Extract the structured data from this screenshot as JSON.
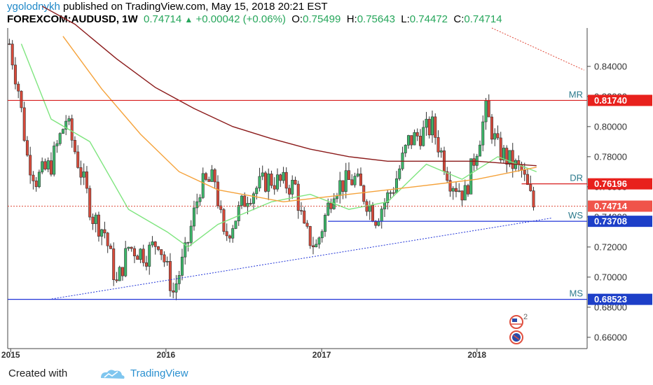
{
  "header": {
    "author": "ygolodnykh",
    "published": " published on TradingView.com, May 15, 2018 20:21 EST",
    "symbol": "FOREXCOM:AUDUSD, 1W",
    "last": "0.74714",
    "change": "+0.00042 (+0.06%)",
    "o_label": "O:",
    "o_value": "0.75499",
    "h_label": "H:",
    "h_value": "0.75643",
    "l_label": "L:",
    "l_value": "0.74472",
    "c_label": "C:",
    "c_value": "0.74714"
  },
  "footer": {
    "created_with": "Created with",
    "brand": "TradingView"
  },
  "events": {
    "count": "2"
  },
  "chart_data": {
    "type": "candlestick",
    "title": "FOREXCOM:AUDUSD, 1W",
    "y_ticks": [
      0.84,
      0.82,
      0.8,
      0.78,
      0.76,
      0.74,
      0.72,
      0.7,
      0.68,
      0.66
    ],
    "y_tick_labels": [
      "0.84000",
      "0.82000",
      "0.80000",
      "0.78000",
      "0.76000",
      "0.74000",
      "0.72000",
      "0.70000",
      "0.68000",
      "0.66000"
    ],
    "y_range": [
      0.6525,
      0.8655
    ],
    "x_ticks": [
      {
        "label": "2015",
        "date": "2015-01-01"
      },
      {
        "label": "2016",
        "date": "2016-01-01"
      },
      {
        "label": "2017",
        "date": "2017-01-01"
      },
      {
        "label": "2018",
        "date": "2018-01-01"
      }
    ],
    "x_range": [
      "2014-12-25",
      "2018-09-17"
    ],
    "ohlc_keyframes": [
      {
        "date": "2014-12-29",
        "close": 0.855
      },
      {
        "date": "2015-01-19",
        "close": 0.825
      },
      {
        "date": "2015-02-09",
        "close": 0.78
      },
      {
        "date": "2015-03-02",
        "close": 0.765
      },
      {
        "date": "2015-04-06",
        "close": 0.775
      },
      {
        "date": "2015-05-11",
        "close": 0.805
      },
      {
        "date": "2015-06-15",
        "close": 0.77
      },
      {
        "date": "2015-07-13",
        "close": 0.74
      },
      {
        "date": "2015-08-10",
        "close": 0.73
      },
      {
        "date": "2015-09-07",
        "close": 0.695
      },
      {
        "date": "2015-10-05",
        "close": 0.72
      },
      {
        "date": "2015-11-16",
        "close": 0.715
      },
      {
        "date": "2015-12-14",
        "close": 0.725
      },
      {
        "date": "2016-01-18",
        "close": 0.69
      },
      {
        "date": "2016-02-15",
        "close": 0.715
      },
      {
        "date": "2016-03-21",
        "close": 0.76
      },
      {
        "date": "2016-04-25",
        "close": 0.765
      },
      {
        "date": "2016-05-16",
        "close": 0.725
      },
      {
        "date": "2016-06-13",
        "close": 0.74
      },
      {
        "date": "2016-07-11",
        "close": 0.755
      },
      {
        "date": "2016-08-29",
        "close": 0.765
      },
      {
        "date": "2016-10-31",
        "close": 0.76
      },
      {
        "date": "2016-11-21",
        "close": 0.73
      },
      {
        "date": "2016-12-19",
        "close": 0.72
      },
      {
        "date": "2017-01-30",
        "close": 0.76
      },
      {
        "date": "2017-03-20",
        "close": 0.765
      },
      {
        "date": "2017-05-08",
        "close": 0.74
      },
      {
        "date": "2017-06-19",
        "close": 0.76
      },
      {
        "date": "2017-07-24",
        "close": 0.79
      },
      {
        "date": "2017-09-18",
        "close": 0.8
      },
      {
        "date": "2017-10-30",
        "close": 0.765
      },
      {
        "date": "2017-12-04",
        "close": 0.755
      },
      {
        "date": "2018-01-22",
        "close": 0.81
      },
      {
        "date": "2018-02-19",
        "close": 0.785
      },
      {
        "date": "2018-03-26",
        "close": 0.775
      },
      {
        "date": "2018-04-16",
        "close": 0.77
      },
      {
        "date": "2018-05-14",
        "close": 0.747
      }
    ],
    "moving_averages": [
      {
        "color": "#7fe57f",
        "values": [
          {
            "date": "2015-01-26",
            "value": 0.855
          },
          {
            "date": "2015-04-06",
            "value": 0.805
          },
          {
            "date": "2015-07-06",
            "value": 0.79
          },
          {
            "date": "2015-10-05",
            "value": 0.745
          },
          {
            "date": "2016-01-04",
            "value": 0.73
          },
          {
            "date": "2016-02-22",
            "value": 0.72
          },
          {
            "date": "2016-05-02",
            "value": 0.735
          },
          {
            "date": "2016-09-05",
            "value": 0.75
          },
          {
            "date": "2016-12-05",
            "value": 0.755
          },
          {
            "date": "2017-03-06",
            "value": 0.745
          },
          {
            "date": "2017-06-05",
            "value": 0.75
          },
          {
            "date": "2017-09-04",
            "value": 0.775
          },
          {
            "date": "2017-11-27",
            "value": 0.765
          },
          {
            "date": "2018-02-19",
            "value": 0.78
          },
          {
            "date": "2018-05-21",
            "value": 0.77
          }
        ]
      },
      {
        "color": "#f5a23a",
        "values": [
          {
            "date": "2015-05-04",
            "value": 0.86
          },
          {
            "date": "2015-08-03",
            "value": 0.825
          },
          {
            "date": "2015-11-02",
            "value": 0.795
          },
          {
            "date": "2016-02-01",
            "value": 0.77
          },
          {
            "date": "2016-05-02",
            "value": 0.758
          },
          {
            "date": "2016-10-03",
            "value": 0.75
          },
          {
            "date": "2017-03-06",
            "value": 0.755
          },
          {
            "date": "2017-08-07",
            "value": 0.76
          },
          {
            "date": "2018-01-01",
            "value": 0.765
          },
          {
            "date": "2018-05-21",
            "value": 0.773
          }
        ]
      },
      {
        "color": "#8b1a1a",
        "values": [
          {
            "date": "2015-03-16",
            "value": 0.88
          },
          {
            "date": "2015-06-01",
            "value": 0.868
          },
          {
            "date": "2015-09-07",
            "value": 0.845
          },
          {
            "date": "2015-12-07",
            "value": 0.826
          },
          {
            "date": "2016-03-07",
            "value": 0.812
          },
          {
            "date": "2016-06-06",
            "value": 0.8
          },
          {
            "date": "2016-09-05",
            "value": 0.792
          },
          {
            "date": "2016-12-05",
            "value": 0.785
          },
          {
            "date": "2017-03-06",
            "value": 0.78
          },
          {
            "date": "2017-06-05",
            "value": 0.777
          },
          {
            "date": "2017-09-04",
            "value": 0.777
          },
          {
            "date": "2018-01-01",
            "value": 0.777
          },
          {
            "date": "2018-05-21",
            "value": 0.774
          }
        ]
      }
    ],
    "levels": [
      {
        "name": "MR",
        "value": 0.8174,
        "label": "0.81740",
        "color": "#d81e1e",
        "badge": "#e8211d",
        "start": "2014-12-25"
      },
      {
        "name": "DR",
        "value": 0.76196,
        "label": "0.76196",
        "color": "#d81e1e",
        "badge": "#e8211d",
        "start": "2018-04-16"
      },
      {
        "name": "WS",
        "value": 0.73708,
        "label": "0.73708",
        "color": "#2235d8",
        "badge": "#1d3fc8",
        "start": "2017-01-16"
      },
      {
        "name": "MS",
        "value": 0.68523,
        "label": "0.68523",
        "color": "#2235d8",
        "badge": "#1d3fc8",
        "start": "2014-12-25"
      }
    ],
    "last_price": {
      "value": 0.74714,
      "label": "0.74714",
      "badge": "#f0534a"
    },
    "trendlines": [
      {
        "color": "#2235d8",
        "dash": true,
        "from": {
          "date": "2015-04-01",
          "value": 0.6852
        },
        "to": {
          "date": "2018-06-25",
          "value": 0.7392
        }
      },
      {
        "color": "#e04a3a",
        "dash": true,
        "from": {
          "date": "2018-02-05",
          "value": 0.8655
        },
        "to": {
          "date": "2018-09-10",
          "value": 0.8375
        }
      }
    ]
  }
}
